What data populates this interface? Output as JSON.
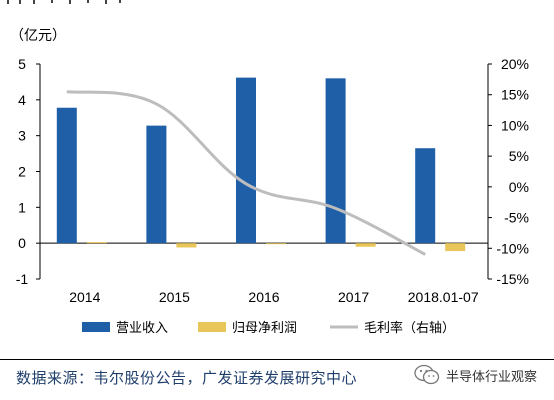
{
  "chart_data": {
    "type": "bar",
    "unit_label": "（亿元）",
    "categories": [
      "2014",
      "2015",
      "2016",
      "2017",
      "2018.01-07"
    ],
    "series": [
      {
        "name": "营业收入",
        "kind": "bar",
        "axis": "left",
        "color": "#1f5fa8",
        "values": [
          3.78,
          3.28,
          4.62,
          4.6,
          2.65
        ]
      },
      {
        "name": "归母净利润",
        "kind": "bar",
        "axis": "left",
        "color": "#e8c65a",
        "values": [
          0.03,
          -0.12,
          -0.02,
          -0.1,
          -0.22
        ]
      },
      {
        "name": "毛利率（右轴）",
        "kind": "line",
        "axis": "right",
        "color": "#bdbdbd",
        "values": [
          15.5,
          13.5,
          0.5,
          -3.5,
          -11.0
        ]
      }
    ],
    "y_left": {
      "min": -1,
      "max": 5,
      "ticks": [
        "-1",
        "0",
        "1",
        "2",
        "3",
        "4",
        "5"
      ]
    },
    "y_right": {
      "min": -15,
      "max": 20,
      "ticks": [
        "-15%",
        "-10%",
        "-5%",
        "0%",
        "5%",
        "10%",
        "15%",
        "20%"
      ]
    },
    "grid": false,
    "legend_position": "bottom"
  },
  "footer": {
    "source": "数据来源：韦尔股份公告，广发证券发展研究中心",
    "watermark": "半导体行业观察"
  }
}
